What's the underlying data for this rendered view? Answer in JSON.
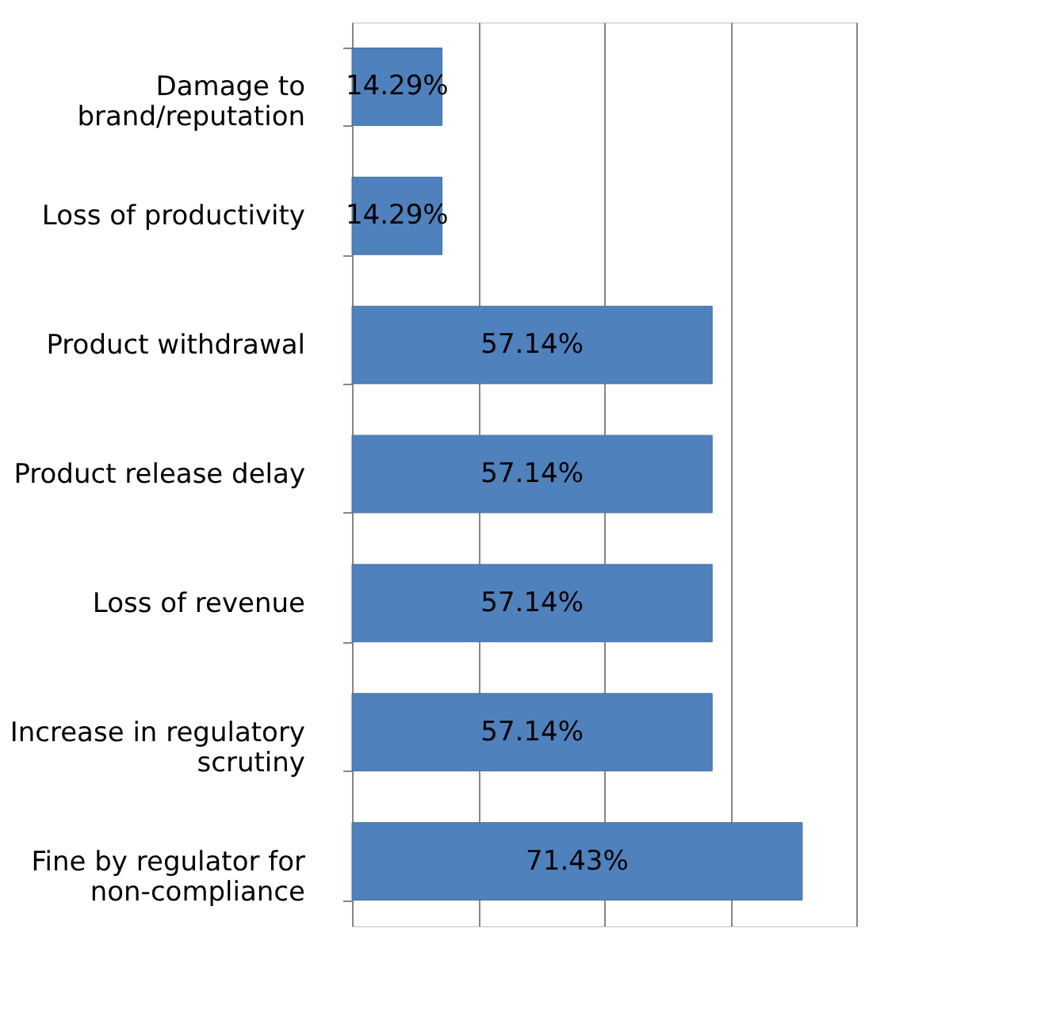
{
  "chart_data": {
    "type": "bar",
    "orientation": "horizontal",
    "relative": false,
    "categories": [
      "Damage to brand/reputation",
      "Loss of productivity",
      "Product withdrawal",
      "Product release delay",
      "Loss of revenue",
      "Increase in regulatory scrutiny",
      "Fine by regulator for non-compliance"
    ],
    "values": [
      14.29,
      14.29,
      57.14,
      57.14,
      57.14,
      57.14,
      71.43
    ],
    "value_labels": [
      "14.29%",
      "14.29%",
      "57.14%",
      "57.14%",
      "57.14%",
      "57.14%",
      "71.43%"
    ],
    "color": "#4f81bd",
    "xlim": [
      0,
      80
    ],
    "xticks": [
      {
        "value": 0,
        "label": null
      },
      {
        "value": 20,
        "label": null
      },
      {
        "value": 40,
        "label": null
      },
      {
        "value": 60,
        "label": null
      },
      {
        "value": 80,
        "label": null
      }
    ],
    "grid": "x",
    "tick_labels": "y"
  }
}
